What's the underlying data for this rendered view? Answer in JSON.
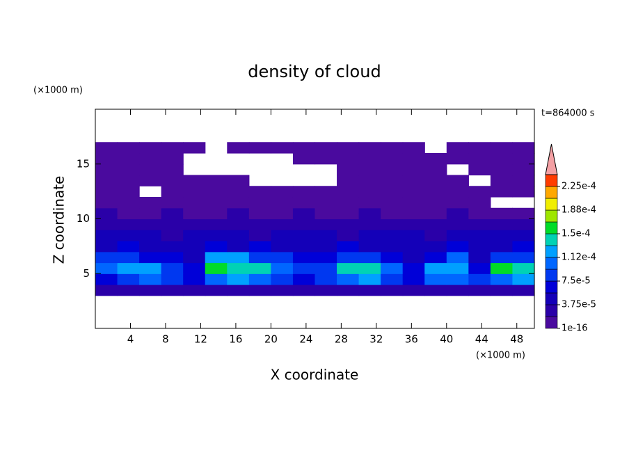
{
  "chart_data": {
    "type": "contour",
    "title": "density of cloud",
    "xlabel": "X coordinate",
    "ylabel": "Z coordinate",
    "x_unit": "(×1000 m)",
    "y_unit": "(×1000 m)",
    "annotation": "t=864000 s",
    "xlim": [
      0,
      50
    ],
    "ylim": [
      0,
      20
    ],
    "xticks": [
      4,
      8,
      12,
      16,
      20,
      24,
      28,
      32,
      36,
      40,
      44,
      48
    ],
    "yticks": [
      5,
      10,
      15
    ],
    "x": [
      1.25,
      3.75,
      6.25,
      8.75,
      11.25,
      13.75,
      16.25,
      18.75,
      21.25,
      23.75,
      26.25,
      28.75,
      31.25,
      33.75,
      36.25,
      38.75,
      41.25,
      43.75,
      46.25,
      48.75
    ],
    "z": [
      3.5,
      4.5,
      5.5,
      6.5,
      7.5,
      8.5,
      9.5,
      10.5,
      11.5,
      12.5,
      13.5,
      14.5,
      15.5,
      16.5
    ],
    "values": [
      [
        2.5e-05,
        3e-05,
        2.5e-05,
        3e-05,
        3e-05,
        2.5e-05,
        3e-05,
        3e-05,
        2.5e-05,
        3e-05,
        3e-05,
        2.5e-05,
        3e-05,
        3e-05,
        2.5e-05,
        3e-05,
        3e-05,
        2.5e-05,
        3e-05,
        3e-05
      ],
      [
        7e-05,
        9e-05,
        0.000105,
        8e-05,
        6e-05,
        0.0001,
        0.000115,
        0.00011,
        9e-05,
        7e-05,
        8e-05,
        0.000105,
        0.000115,
        9e-05,
        6e-05,
        0.0001,
        0.00011,
        8e-05,
        0.000105,
        0.000115
      ],
      [
        0.0001,
        0.00013,
        0.00012,
        8e-05,
        7e-05,
        0.00016,
        0.00014,
        0.000135,
        0.00011,
        8e-05,
        9e-05,
        0.00014,
        0.000145,
        0.0001,
        7e-05,
        0.00012,
        0.00013,
        7e-05,
        0.00015,
        0.00014
      ],
      [
        8e-05,
        9e-05,
        7e-05,
        6e-05,
        5e-05,
        0.00013,
        0.000115,
        9e-05,
        8e-05,
        6e-05,
        7e-05,
        9e-05,
        8e-05,
        6e-05,
        5e-05,
        7e-05,
        0.0001,
        5e-05,
        9e-05,
        8e-05
      ],
      [
        5e-05,
        6e-05,
        5e-05,
        4e-05,
        4.5e-05,
        6e-05,
        5e-05,
        6e-05,
        5e-05,
        4e-05,
        5e-05,
        6e-05,
        5e-05,
        4e-05,
        4.5e-05,
        5e-05,
        6e-05,
        4e-05,
        5e-05,
        6e-05
      ],
      [
        4e-05,
        4.5e-05,
        4e-05,
        3.5e-05,
        4e-05,
        4.5e-05,
        4e-05,
        3.5e-05,
        4e-05,
        4.5e-05,
        4e-05,
        3.5e-05,
        4e-05,
        4.5e-05,
        4e-05,
        3.5e-05,
        4e-05,
        4.5e-05,
        4e-05,
        4e-05
      ],
      [
        3e-05,
        2.5e-05,
        2e-05,
        2.5e-05,
        2e-05,
        2.5e-05,
        2e-05,
        2e-05,
        2.5e-05,
        2e-05,
        2e-05,
        2.5e-05,
        2e-05,
        2e-05,
        2.5e-05,
        2e-05,
        2e-05,
        2.5e-05,
        2e-05,
        2e-05
      ],
      [
        2e-05,
        1e-05,
        1.5e-05,
        2e-05,
        1.5e-05,
        1e-05,
        2e-05,
        1.5e-05,
        1e-05,
        2e-05,
        1e-05,
        1.5e-05,
        2e-05,
        1.5e-05,
        1e-05,
        1e-05,
        2e-05,
        1e-05,
        1e-05,
        1.5e-05
      ],
      [
        5e-06,
        5e-06,
        5e-06,
        5e-06,
        5e-06,
        5e-06,
        5e-06,
        5e-06,
        5e-06,
        5e-06,
        5e-06,
        5e-06,
        5e-06,
        5e-06,
        5e-06,
        5e-06,
        5e-06,
        5e-06,
        null,
        null
      ],
      [
        5e-06,
        5e-06,
        null,
        5e-06,
        5e-06,
        5e-06,
        5e-06,
        5e-06,
        5e-06,
        5e-06,
        5e-06,
        5e-06,
        5e-06,
        5e-06,
        5e-06,
        5e-06,
        5e-06,
        5e-06,
        5e-06,
        5e-06
      ],
      [
        5e-06,
        5e-06,
        5e-06,
        5e-06,
        5e-06,
        5e-06,
        5e-06,
        null,
        null,
        null,
        null,
        5e-06,
        5e-06,
        5e-06,
        5e-06,
        5e-06,
        5e-06,
        null,
        5e-06,
        5e-06
      ],
      [
        5e-06,
        5e-06,
        5e-06,
        5e-06,
        null,
        null,
        null,
        null,
        null,
        null,
        null,
        5e-06,
        5e-06,
        5e-06,
        5e-06,
        5e-06,
        null,
        5e-06,
        5e-06,
        5e-06
      ],
      [
        5e-06,
        5e-06,
        5e-06,
        5e-06,
        null,
        null,
        null,
        null,
        null,
        5e-06,
        5e-06,
        5e-06,
        5e-06,
        5e-06,
        5e-06,
        5e-06,
        5e-06,
        5e-06,
        5e-06,
        5e-06
      ],
      [
        5e-06,
        5e-06,
        5e-06,
        5e-06,
        5e-06,
        null,
        5e-06,
        5e-06,
        5e-06,
        5e-06,
        5e-06,
        5e-06,
        5e-06,
        5e-06,
        5e-06,
        null,
        5e-06,
        5e-06,
        5e-06,
        5e-06
      ]
    ],
    "colorbar": {
      "levels": [
        1e-16,
        1.875e-05,
        3.75e-05,
        5.625e-05,
        7.5e-05,
        9.375e-05,
        0.0001125,
        0.00013125,
        0.00015,
        0.00016875,
        0.0001875,
        0.00020625,
        0.000225,
        0.00024375
      ],
      "colors": [
        "#4a0a9e",
        "#2a00a8",
        "#1400b8",
        "#0000d8",
        "#0038f0",
        "#0066ff",
        "#00a0ff",
        "#00d2b4",
        "#00dc28",
        "#9ee600",
        "#f0ee00",
        "#ffa800",
        "#ff3c00"
      ],
      "overflow_color": "#f4a0a4",
      "ticks": [
        {
          "value": 1e-16,
          "label": "1e-16"
        },
        {
          "value": 3.75e-05,
          "label": "3.75e-5"
        },
        {
          "value": 7.5e-05,
          "label": "7.5e-5"
        },
        {
          "value": 0.0001125,
          "label": "1.12e-4"
        },
        {
          "value": 0.00015,
          "label": "1.5e-4"
        },
        {
          "value": 0.0001875,
          "label": "1.88e-4"
        },
        {
          "value": 0.000225,
          "label": "2.25e-4"
        }
      ]
    }
  }
}
